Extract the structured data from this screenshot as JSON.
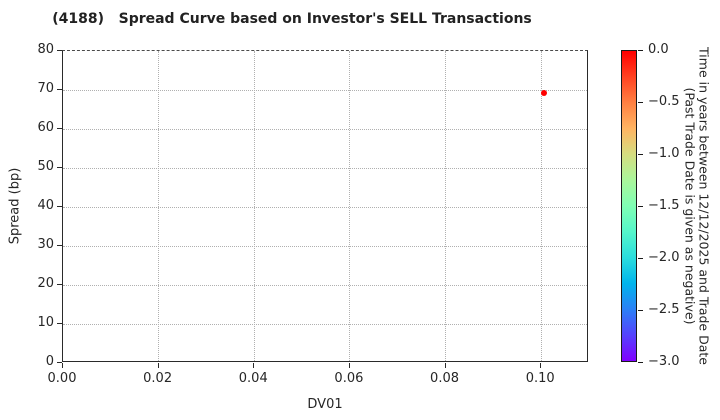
{
  "title": "(4188)   Spread Curve based on Investor's SELL Transactions",
  "chart_data": {
    "type": "scatter",
    "title": "(4188)   Spread Curve based on Investor's SELL Transactions",
    "xlabel": "DV01",
    "ylabel": "Spread (bp)",
    "xlim": [
      0,
      0.11
    ],
    "ylim": [
      0,
      80
    ],
    "grid": true,
    "grid_style": "dotted",
    "xticks": {
      "values": [
        0,
        0.02,
        0.04,
        0.06,
        0.08,
        0.1
      ],
      "labels": [
        "0.00",
        "0.02",
        "0.04",
        "0.06",
        "0.08",
        "0.10"
      ]
    },
    "yticks": {
      "values": [
        0,
        10,
        20,
        30,
        40,
        50,
        60,
        70,
        80
      ],
      "labels": [
        "0",
        "10",
        "20",
        "30",
        "40",
        "50",
        "60",
        "70",
        "80"
      ]
    },
    "points": [
      {
        "x": 0.1005,
        "y": 69.3,
        "color": "#ff0000",
        "colorbar_value": 0.0
      }
    ],
    "colorbar": {
      "label_line1": "Time in years between 12/12/2025 and Trade Date",
      "label_line2": "(Past Trade Date is given as negative)",
      "range": [
        0.0,
        -3.0
      ],
      "ticks": {
        "values": [
          0.0,
          -0.5,
          -1.0,
          -1.5,
          -2.0,
          -2.5,
          -3.0
        ],
        "labels": [
          "0.0",
          "−0.5",
          "−1.0",
          "−1.5",
          "−2.0",
          "−2.5",
          "−3.0"
        ]
      },
      "gradient": [
        {
          "pos": 0.0,
          "color": "#ff0000"
        },
        {
          "pos": 0.0833,
          "color": "#ff4221"
        },
        {
          "pos": 0.1667,
          "color": "#ff8042"
        },
        {
          "pos": 0.25,
          "color": "#ffb462"
        },
        {
          "pos": 0.3333,
          "color": "#d5dd80"
        },
        {
          "pos": 0.4167,
          "color": "#aaf69b"
        },
        {
          "pos": 0.5,
          "color": "#80ffb4"
        },
        {
          "pos": 0.5833,
          "color": "#55f6ca"
        },
        {
          "pos": 0.6667,
          "color": "#2bdddd"
        },
        {
          "pos": 0.75,
          "color": "#00b4ec"
        },
        {
          "pos": 0.8333,
          "color": "#2b80f6"
        },
        {
          "pos": 0.9167,
          "color": "#5542fd"
        },
        {
          "pos": 1.0,
          "color": "#8000ff"
        }
      ]
    }
  }
}
